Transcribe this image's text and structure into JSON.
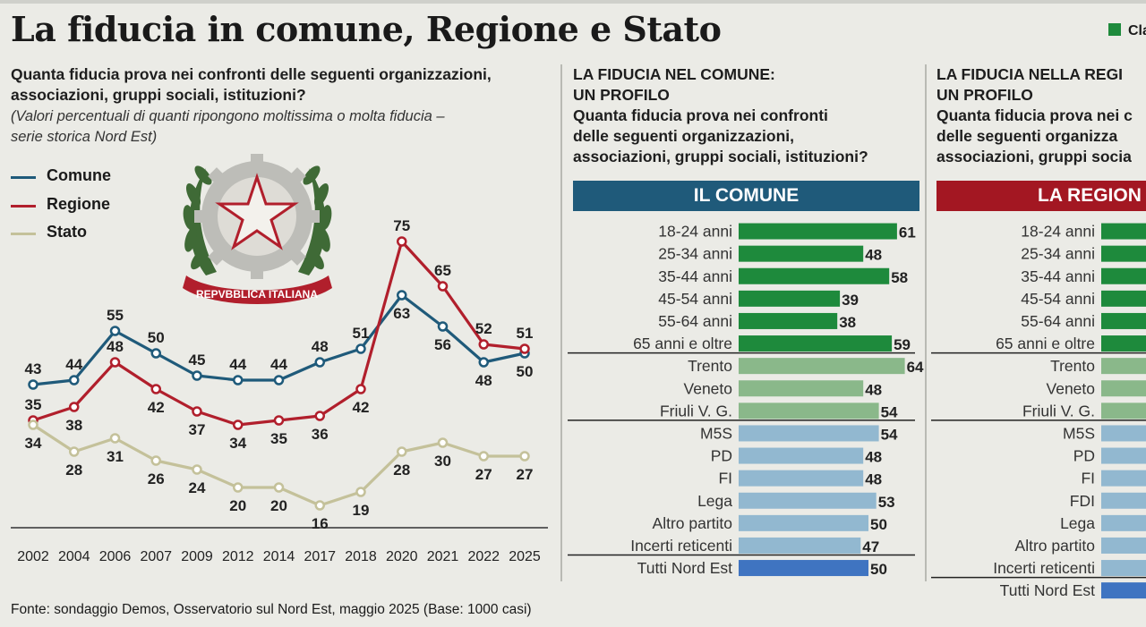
{
  "title": "La fiducia in comune, Regione e Stato",
  "header_legend": {
    "label": "Cla",
    "color": "#1e8a3c"
  },
  "left": {
    "question": "Quanta fiducia prova nei confronti delle seguenti organizzazioni,\nassociazioni, gruppi sociali, istituzioni?",
    "question_line1": "Quanta fiducia prova nei confronti delle seguenti organizzazioni,",
    "question_line2": "associazioni, gruppi sociali, istituzioni?",
    "note_line1": "(Valori percentuali di quanti ripongono moltissima o molta fiducia –",
    "note_line2": "serie storica Nord Est)",
    "emblem_text": "REPVBBLICA ITALIANA"
  },
  "comune_panel": {
    "heading_line1": "LA FIDUCIA NEL COMUNE:",
    "heading_line2": "UN PROFILO",
    "question_line1": "Quanta fiducia prova nei confronti",
    "question_line2": "delle seguenti organizzazioni,",
    "question_line3": "associazioni, gruppi sociali, istituzioni?",
    "banner": "IL COMUNE"
  },
  "regione_panel": {
    "heading_line1": "LA FIDUCIA NELLA REGI",
    "heading_line2": "UN PROFILO",
    "question_line1": "Quanta fiducia prova nei c",
    "question_line2": "delle seguenti organizza",
    "question_line3": "associazioni, gruppi socia",
    "banner": "LA REGION"
  },
  "source": "Fonte: sondaggio Demos, Osservatorio sul Nord Est, maggio 2025 (Base: 1000 casi)",
  "colors": {
    "comune": "#1f5a7a",
    "regione": "#b11f2c",
    "stato": "#c4c19a",
    "age": "#1e8a3c",
    "region": "#8ab88a",
    "party": "#92b8d0",
    "total": "#3f74c1"
  },
  "chart_data": [
    {
      "type": "line",
      "categories": [
        "2002",
        "2004",
        "2006",
        "2007",
        "2009",
        "2012",
        "2014",
        "2017",
        "2018",
        "2020",
        "2021",
        "2022",
        "2025"
      ],
      "series": [
        {
          "name": "Comune",
          "color": "#1f5a7a",
          "values": [
            43,
            44,
            55,
            50,
            45,
            44,
            44,
            48,
            51,
            63,
            56,
            48,
            50
          ]
        },
        {
          "name": "Regione",
          "color": "#b11f2c",
          "values": [
            35,
            38,
            48,
            42,
            37,
            34,
            35,
            36,
            42,
            75,
            65,
            52,
            51
          ]
        },
        {
          "name": "Stato",
          "color": "#c4c19a",
          "values": [
            34,
            28,
            31,
            26,
            24,
            20,
            20,
            16,
            19,
            28,
            30,
            27,
            27
          ]
        }
      ],
      "legend": "top-left"
    },
    {
      "type": "bar",
      "orientation": "horizontal",
      "title": "IL COMUNE",
      "xlim": [
        0,
        64
      ],
      "groups": [
        {
          "kind": "age",
          "categories": [
            "18-24 anni",
            "25-34 anni",
            "35-44 anni",
            "45-54 anni",
            "55-64 anni",
            "65 anni e oltre"
          ],
          "values": [
            61,
            48,
            58,
            39,
            38,
            59
          ]
        },
        {
          "kind": "region",
          "categories": [
            "Trento",
            "Veneto",
            "Friuli V. G."
          ],
          "values": [
            64,
            48,
            54
          ]
        },
        {
          "kind": "party",
          "categories": [
            "M5S",
            "PD",
            "FI",
            "Lega",
            "Altro partito",
            "Incerti reticenti"
          ],
          "values": [
            54,
            48,
            48,
            53,
            50,
            47
          ]
        },
        {
          "kind": "total",
          "categories": [
            "Tutti Nord Est"
          ],
          "values": [
            50
          ]
        }
      ]
    },
    {
      "type": "bar",
      "orientation": "horizontal",
      "title": "LA REGION",
      "groups": [
        {
          "kind": "age",
          "categories": [
            "18-24 anni",
            "25-34 anni",
            "35-44 anni",
            "45-54 anni",
            "55-64 anni",
            "65 anni e oltre"
          ]
        },
        {
          "kind": "region",
          "categories": [
            "Trento",
            "Veneto",
            "Friuli V. G."
          ]
        },
        {
          "kind": "party",
          "categories": [
            "M5S",
            "PD",
            "FI",
            "FDI",
            "Lega",
            "Altro partito",
            "Incerti reticenti"
          ]
        },
        {
          "kind": "total",
          "categories": [
            "Tutti Nord Est"
          ]
        }
      ]
    }
  ]
}
